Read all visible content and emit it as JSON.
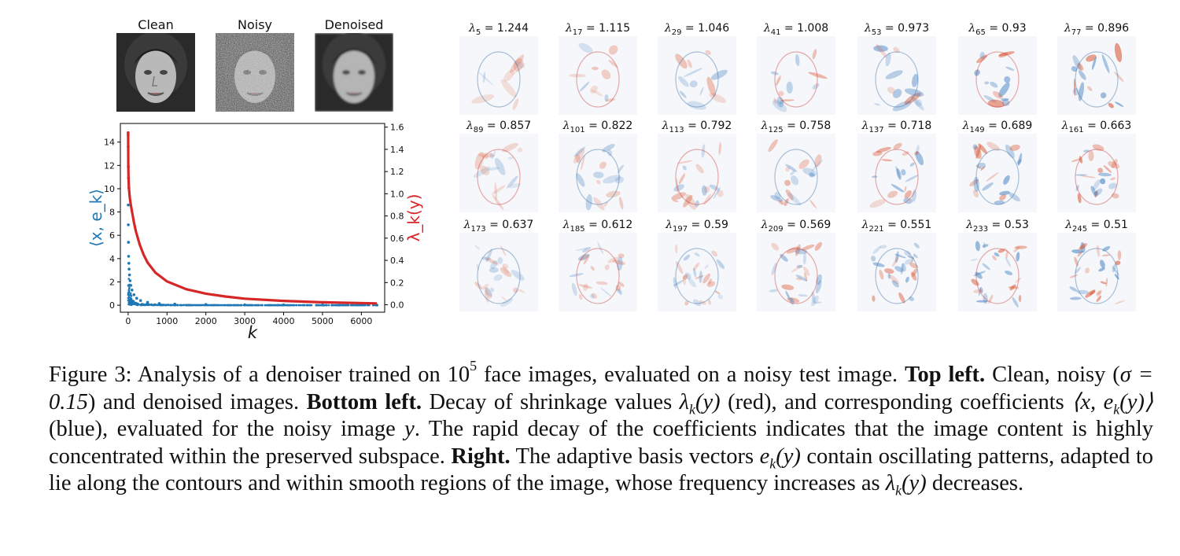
{
  "top_left": {
    "labels": [
      "Clean",
      "Noisy",
      "Denoised"
    ]
  },
  "chart_data": {
    "type": "scatter",
    "x_label": "k",
    "y_left_label": "⟨x, e_k⟩",
    "y_right_label": "λ_k(y)",
    "x_ticks": [
      0,
      1000,
      2000,
      3000,
      4000,
      5000,
      6000
    ],
    "y_left_ticks": [
      0,
      2,
      4,
      6,
      8,
      10,
      12,
      14
    ],
    "y_right_ticks": [
      0.0,
      0.2,
      0.4,
      0.6,
      0.8,
      1.0,
      1.2,
      1.4,
      1.6
    ],
    "xlim": [
      -200,
      6600
    ],
    "y_left_lim": [
      -0.6,
      15.6
    ],
    "y_right_lim": [
      -0.067,
      1.633
    ],
    "series": [
      {
        "name": "⟨x, e_k⟩",
        "color": "#1f77b4",
        "axis": "left",
        "x": [
          1,
          2,
          3,
          5,
          8,
          12,
          18,
          25,
          35,
          50,
          70,
          100,
          150,
          220,
          320,
          500,
          800,
          1200,
          2000,
          3000,
          4000,
          5000,
          6400
        ],
        "y": [
          14.6,
          13.6,
          8.6,
          6.9,
          5.4,
          4.2,
          3.6,
          3.1,
          2.6,
          2.1,
          1.7,
          1.3,
          0.9,
          0.6,
          0.4,
          0.25,
          0.15,
          0.1,
          0.06,
          0.04,
          0.03,
          0.02,
          0.01
        ]
      },
      {
        "name": "λ_k(y)",
        "color": "#d62728",
        "axis": "right",
        "x": [
          1,
          5,
          10,
          20,
          40,
          70,
          100,
          150,
          200,
          300,
          400,
          500,
          700,
          1000,
          1500,
          2000,
          2500,
          3000,
          4000,
          5000,
          6400
        ],
        "y": [
          1.55,
          1.244,
          1.14,
          1.05,
          0.97,
          0.9,
          0.84,
          0.74,
          0.66,
          0.54,
          0.45,
          0.38,
          0.29,
          0.21,
          0.14,
          0.1,
          0.075,
          0.055,
          0.035,
          0.022,
          0.012
        ]
      }
    ]
  },
  "right_grid": {
    "items": [
      {
        "k": "5",
        "value": "1.244",
        "seed": 1
      },
      {
        "k": "17",
        "value": "1.115",
        "seed": 2
      },
      {
        "k": "29",
        "value": "1.046",
        "seed": 3
      },
      {
        "k": "41",
        "value": "1.008",
        "seed": 4
      },
      {
        "k": "53",
        "value": "0.973",
        "seed": 5
      },
      {
        "k": "65",
        "value": "0.93",
        "seed": 6
      },
      {
        "k": "77",
        "value": "0.896",
        "seed": 7
      },
      {
        "k": "89",
        "value": "0.857",
        "seed": 8
      },
      {
        "k": "101",
        "value": "0.822",
        "seed": 9
      },
      {
        "k": "113",
        "value": "0.792",
        "seed": 10
      },
      {
        "k": "125",
        "value": "0.758",
        "seed": 11
      },
      {
        "k": "137",
        "value": "0.718",
        "seed": 12
      },
      {
        "k": "149",
        "value": "0.689",
        "seed": 13
      },
      {
        "k": "161",
        "value": "0.663",
        "seed": 14
      },
      {
        "k": "173",
        "value": "0.637",
        "seed": 15
      },
      {
        "k": "185",
        "value": "0.612",
        "seed": 16
      },
      {
        "k": "197",
        "value": "0.59",
        "seed": 17
      },
      {
        "k": "209",
        "value": "0.569",
        "seed": 18
      },
      {
        "k": "221",
        "value": "0.551",
        "seed": 19
      },
      {
        "k": "233",
        "value": "0.53",
        "seed": 20
      },
      {
        "k": "245",
        "value": "0.51",
        "seed": 21
      }
    ]
  },
  "caption": {
    "p1": "Figure 3: Analysis of a denoiser trained on ",
    "p1_base": "10",
    "p1_exp": "5",
    "p2": " face images, evaluated on a noisy test image. ",
    "b1": "Top left.",
    "p3": " Clean, noisy (",
    "sigma": "σ = 0.15",
    "p4": ") and denoised images. ",
    "b2": "Bottom left.",
    "p5": " Decay of shrinkage values ",
    "lam": "λ",
    "k": "k",
    "y_arg": "(y)",
    "p6": " (red), and corresponding coefficients ",
    "coef_open": "⟨x, e",
    "coef_close": "(y)⟩",
    "p7": " (blue), evaluated for the noisy image ",
    "y": "y",
    "p8": ". The rapid decay of the coefficients indicates that the image content is highly concentrated within the preserved subspace. ",
    "b3": "Right.",
    "p9": " The adaptive basis vectors ",
    "e": "e",
    "p10": " contain oscillating patterns, adapted to lie along the contours and within smooth regions of the image, whose frequency increases as ",
    "p11": " decreases."
  }
}
